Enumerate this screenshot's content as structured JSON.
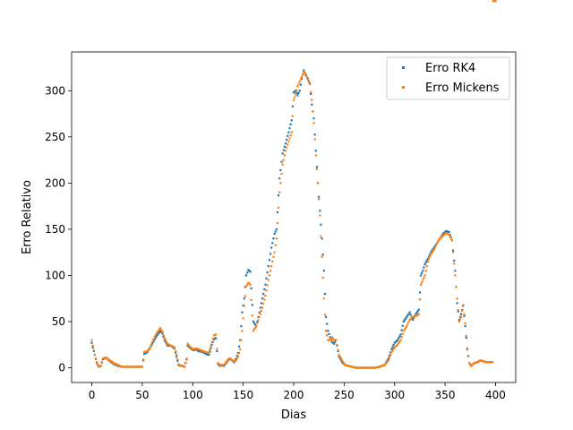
{
  "chart_data": {
    "type": "scatter",
    "title": "",
    "xlabel": "Dias",
    "ylabel": "Erro Relativo",
    "xlim": [
      -20,
      420
    ],
    "ylim": [
      -16,
      342
    ],
    "xticks": [
      0,
      50,
      100,
      150,
      200,
      250,
      300,
      350,
      400
    ],
    "yticks": [
      0,
      50,
      100,
      150,
      200,
      250,
      300
    ],
    "grid": false,
    "legend_position": "top-right",
    "series": [
      {
        "name": "Erro RK4",
        "color": "#1f77b4"
      },
      {
        "name": "Erro Mickens",
        "color": "#ff7f0e"
      }
    ],
    "keypoints": {
      "x": [
        0,
        1,
        3,
        5,
        7,
        9,
        11,
        14,
        18,
        22,
        26,
        30,
        35,
        40,
        45,
        50,
        52,
        55,
        58,
        60,
        62,
        64,
        66,
        68,
        70,
        72,
        75,
        78,
        82,
        84,
        86,
        88,
        90,
        92,
        94,
        95,
        97,
        99,
        101,
        103,
        106,
        110,
        113,
        116,
        119,
        121,
        123,
        125,
        127,
        129,
        131,
        133,
        135,
        137,
        139,
        141,
        143,
        145,
        147,
        149,
        151,
        153,
        155,
        157,
        160,
        163,
        166,
        169,
        172,
        175,
        178,
        181,
        183,
        186,
        189,
        192,
        195,
        198,
        200,
        202,
        204,
        206,
        208,
        210,
        212,
        214,
        216,
        218,
        220,
        222,
        224,
        226,
        228,
        230,
        232,
        234,
        236,
        238,
        240,
        242,
        245,
        248,
        251,
        254,
        258,
        262,
        266,
        270,
        275,
        280,
        285,
        290,
        294,
        297,
        300,
        303,
        306,
        309,
        312,
        315,
        318,
        321,
        324,
        326,
        328,
        330,
        333,
        336,
        339,
        342,
        345,
        348,
        351,
        354,
        357,
        360,
        362,
        364,
        366,
        368,
        370,
        372,
        374,
        376,
        379,
        382,
        385,
        388,
        391,
        394,
        397,
        400
      ],
      "rk4": [
        27,
        22,
        14,
        5,
        1,
        2,
        9,
        11,
        7,
        4,
        2,
        1,
        1,
        1,
        1,
        1,
        15,
        17,
        22,
        26,
        30,
        34,
        37,
        40,
        37,
        30,
        24,
        24,
        21,
        12,
        3,
        2,
        2,
        1,
        9,
        24,
        22,
        20,
        19,
        20,
        18,
        17,
        15,
        14,
        25,
        31,
        32,
        4,
        2,
        3,
        2,
        5,
        8,
        10,
        8,
        6,
        10,
        16,
        30,
        60,
        75,
        100,
        106,
        104,
        50,
        45,
        60,
        75,
        90,
        110,
        130,
        145,
        150,
        205,
        232,
        243,
        255,
        268,
        298,
        300,
        295,
        300,
        313,
        322,
        317,
        313,
        308,
        285,
        270,
        235,
        200,
        170,
        140,
        105,
        55,
        40,
        33,
        28,
        26,
        30,
        12,
        6,
        3,
        2,
        1,
        0,
        0,
        0,
        0,
        0,
        1,
        3,
        10,
        20,
        27,
        30,
        36,
        50,
        55,
        60,
        52,
        58,
        63,
        100,
        105,
        112,
        118,
        125,
        130,
        135,
        140,
        145,
        148,
        147,
        138,
        105,
        70,
        52,
        58,
        67,
        45,
        20,
        5,
        2,
        5,
        6,
        8,
        7,
        6,
        6,
        6
      ],
      "mickens": [
        30,
        24,
        14,
        6,
        1,
        2,
        10,
        11,
        8,
        5,
        3,
        1,
        1,
        1,
        1,
        1,
        17,
        18,
        22,
        28,
        33,
        37,
        40,
        43,
        39,
        32,
        26,
        24,
        22,
        14,
        4,
        2,
        2,
        1,
        10,
        26,
        23,
        21,
        20,
        21,
        20,
        18,
        17,
        16,
        28,
        35,
        36,
        5,
        3,
        3,
        3,
        6,
        9,
        10,
        8,
        7,
        8,
        12,
        20,
        40,
        67,
        88,
        92,
        90,
        40,
        45,
        55,
        65,
        78,
        95,
        110,
        125,
        140,
        190,
        220,
        235,
        245,
        255,
        290,
        296,
        305,
        310,
        315,
        320,
        318,
        312,
        307,
        290,
        265,
        230,
        200,
        165,
        120,
        75,
        40,
        30,
        30,
        33,
        30,
        30,
        14,
        8,
        3,
        2,
        1,
        0,
        0,
        0,
        0,
        0,
        1,
        3,
        8,
        17,
        22,
        25,
        30,
        40,
        45,
        52,
        55,
        56,
        58,
        90,
        95,
        100,
        115,
        123,
        128,
        135,
        140,
        143,
        146,
        144,
        138,
        100,
        75,
        50,
        55,
        68,
        48,
        21,
        5,
        2,
        5,
        6,
        8,
        7,
        6,
        6,
        6
      ]
    }
  }
}
